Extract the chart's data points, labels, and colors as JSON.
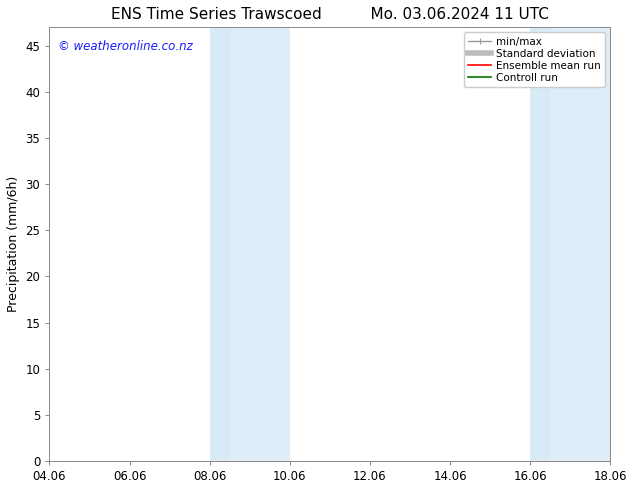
{
  "title_left": "ENS Time Series Trawscoed",
  "title_right": "Mo. 03.06.2024 11 UTC",
  "ylabel": "Precipitation (mm/6h)",
  "xlabel_ticks": [
    "04.06",
    "06.06",
    "08.06",
    "10.06",
    "12.06",
    "14.06",
    "16.06",
    "18.06"
  ],
  "xlim": [
    0,
    14
  ],
  "ylim": [
    0,
    47
  ],
  "yticks": [
    0,
    5,
    10,
    15,
    20,
    25,
    30,
    35,
    40,
    45
  ],
  "watermark": "© weatheronline.co.nz",
  "watermark_color": "#1a1aff",
  "background_color": "#ffffff",
  "plot_bg_color": "#ffffff",
  "shaded_regions": [
    {
      "xstart": 4.0,
      "xend": 4.5,
      "color": "#d8eaf6"
    },
    {
      "xstart": 4.5,
      "xend": 6.0,
      "color": "#deedf8"
    },
    {
      "xstart": 12.0,
      "xend": 12.5,
      "color": "#d8eaf6"
    },
    {
      "xstart": 12.5,
      "xend": 14.0,
      "color": "#deedf8"
    }
  ],
  "legend_entries": [
    {
      "label": "min/max",
      "color": "#999999",
      "lw": 1.0,
      "ls": "-"
    },
    {
      "label": "Standard deviation",
      "color": "#bbbbbb",
      "lw": 4,
      "ls": "-"
    },
    {
      "label": "Ensemble mean run",
      "color": "#ff0000",
      "lw": 1.2,
      "ls": "-"
    },
    {
      "label": "Controll run",
      "color": "#007700",
      "lw": 1.2,
      "ls": "-"
    }
  ],
  "tick_fontsize": 8.5,
  "label_fontsize": 9,
  "title_fontsize": 11,
  "watermark_fontsize": 8.5
}
